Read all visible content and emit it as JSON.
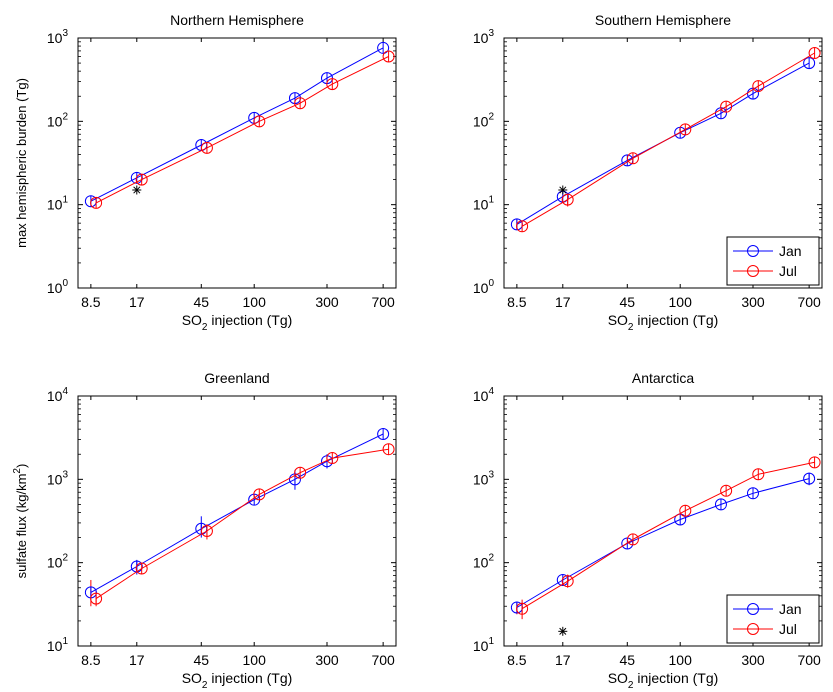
{
  "chart_data": [
    {
      "type": "line",
      "title": "Northern Hemisphere",
      "xlabel_main": "SO",
      "xlabel_sub": "2",
      "xlabel_rest": " injection (Tg)",
      "ylabel": "max hemispheric burden (Tg)",
      "ylabel_sup": "",
      "ylabel_end": "",
      "xscale": "log",
      "yscale": "log",
      "xlim": [
        7,
        850
      ],
      "ylim": [
        1,
        1000
      ],
      "xticks": [
        8.5,
        17,
        45,
        100,
        300,
        700
      ],
      "xtick_labels": [
        "8.5",
        "17",
        "45",
        "100",
        "300",
        "700"
      ],
      "yticks": [
        1,
        10,
        100,
        1000
      ],
      "ytick_labels": [
        [
          "10",
          "0"
        ],
        [
          "10",
          "1"
        ],
        [
          "10",
          "2"
        ],
        [
          "10",
          "3"
        ]
      ],
      "grid": false,
      "legend": null,
      "series": [
        {
          "color": "#0000ff",
          "x": [
            8.5,
            17,
            45,
            100,
            185,
            300,
            700
          ],
          "y": [
            11,
            21,
            52,
            110,
            190,
            330,
            760
          ]
        },
        {
          "color": "#ff0000",
          "x": [
            9.2,
            18.3,
            49,
            108,
            200,
            325,
            760
          ],
          "y": [
            10.5,
            20,
            48,
            100,
            165,
            280,
            600
          ]
        }
      ],
      "errorbars": [],
      "annotations": [
        {
          "marker": "asterisk",
          "x": 17,
          "y": 15
        }
      ]
    },
    {
      "type": "line",
      "title": "Southern Hemisphere",
      "xlabel_main": "SO",
      "xlabel_sub": "2",
      "xlabel_rest": " injection (Tg)",
      "ylabel": "",
      "ylabel_sup": "",
      "ylabel_end": "",
      "xscale": "log",
      "yscale": "log",
      "xlim": [
        7,
        850
      ],
      "ylim": [
        1,
        1000
      ],
      "xticks": [
        8.5,
        17,
        45,
        100,
        300,
        700
      ],
      "xtick_labels": [
        "8.5",
        "17",
        "45",
        "100",
        "300",
        "700"
      ],
      "yticks": [
        1,
        10,
        100,
        1000
      ],
      "ytick_labels": [
        [
          "10",
          "0"
        ],
        [
          "10",
          "1"
        ],
        [
          "10",
          "2"
        ],
        [
          "10",
          "3"
        ]
      ],
      "grid": false,
      "legend": {
        "placement": "bottom-right",
        "entries": [
          {
            "label": "Jan",
            "color": "#0000ff"
          },
          {
            "label": "Jul",
            "color": "#ff0000"
          }
        ]
      },
      "series": [
        {
          "color": "#0000ff",
          "x": [
            8.5,
            17,
            45,
            100,
            185,
            300,
            700
          ],
          "y": [
            5.8,
            12.5,
            34,
            73,
            125,
            215,
            500
          ]
        },
        {
          "color": "#ff0000",
          "x": [
            9.2,
            18.3,
            49,
            108,
            200,
            325,
            760
          ],
          "y": [
            5.5,
            11.5,
            36,
            80,
            150,
            265,
            660
          ]
        }
      ],
      "errorbars": [
        {
          "x": 8.5,
          "y_low": 5.0,
          "y_high": 6.6
        },
        {
          "x": 18.3,
          "y_low": 9.5,
          "y_high": 13.5
        }
      ],
      "annotations": [
        {
          "marker": "asterisk",
          "x": 17,
          "y": 15
        }
      ]
    },
    {
      "type": "line",
      "title": "Greenland",
      "xlabel_main": "SO",
      "xlabel_sub": "2",
      "xlabel_rest": " injection (Tg)",
      "ylabel": "sulfate flux (kg/km",
      "ylabel_sup": "2",
      "ylabel_end": ")",
      "xscale": "log",
      "yscale": "log",
      "xlim": [
        7,
        850
      ],
      "ylim": [
        10,
        10000
      ],
      "xticks": [
        8.5,
        17,
        45,
        100,
        300,
        700
      ],
      "xtick_labels": [
        "8.5",
        "17",
        "45",
        "100",
        "300",
        "700"
      ],
      "yticks": [
        10,
        100,
        1000,
        10000
      ],
      "ytick_labels": [
        [
          "10",
          "1"
        ],
        [
          "10",
          "2"
        ],
        [
          "10",
          "3"
        ],
        [
          "10",
          "4"
        ]
      ],
      "grid": false,
      "legend": null,
      "series": [
        {
          "color": "#0000ff",
          "x": [
            8.5,
            17,
            45,
            100,
            185,
            300,
            700
          ],
          "y": [
            44,
            90,
            255,
            570,
            1000,
            1650,
            3500
          ]
        },
        {
          "color": "#ff0000",
          "x": [
            9.2,
            18.3,
            49,
            108,
            200,
            325,
            760
          ],
          "y": [
            37,
            85,
            240,
            660,
            1200,
            1800,
            2300
          ]
        }
      ],
      "errorbars": [
        {
          "x": 8.5,
          "y_low": 30,
          "y_high": 62
        },
        {
          "x": 9.2,
          "y_low": 30,
          "y_high": 46
        },
        {
          "x": 17,
          "y_low": 72,
          "y_high": 108
        },
        {
          "x": 45,
          "y_low": 200,
          "y_high": 360
        },
        {
          "x": 49,
          "y_low": 190,
          "y_high": 290
        },
        {
          "x": 185,
          "y_low": 750,
          "y_high": 1300
        },
        {
          "x": 300,
          "y_low": 1350,
          "y_high": 2000
        }
      ],
      "annotations": []
    },
    {
      "type": "line",
      "title": "Antarctica",
      "xlabel_main": "SO",
      "xlabel_sub": "2",
      "xlabel_rest": " injection (Tg)",
      "ylabel": "",
      "ylabel_sup": "",
      "ylabel_end": "",
      "xscale": "log",
      "yscale": "log",
      "xlim": [
        7,
        850
      ],
      "ylim": [
        10,
        10000
      ],
      "xticks": [
        8.5,
        17,
        45,
        100,
        300,
        700
      ],
      "xtick_labels": [
        "8.5",
        "17",
        "45",
        "100",
        "300",
        "700"
      ],
      "yticks": [
        10,
        100,
        1000,
        10000
      ],
      "ytick_labels": [
        [
          "10",
          "1"
        ],
        [
          "10",
          "2"
        ],
        [
          "10",
          "3"
        ],
        [
          "10",
          "4"
        ]
      ],
      "grid": false,
      "legend": {
        "placement": "bottom-right",
        "entries": [
          {
            "label": "Jan",
            "color": "#0000ff"
          },
          {
            "label": "Jul",
            "color": "#ff0000"
          }
        ]
      },
      "series": [
        {
          "color": "#0000ff",
          "x": [
            8.5,
            17,
            45,
            100,
            185,
            300,
            700
          ],
          "y": [
            29,
            62,
            170,
            330,
            500,
            680,
            1020
          ]
        },
        {
          "color": "#ff0000",
          "x": [
            9.2,
            18.3,
            49,
            108,
            200,
            325,
            760
          ],
          "y": [
            28,
            60,
            190,
            420,
            730,
            1150,
            1600
          ]
        }
      ],
      "errorbars": [
        {
          "x": 8.5,
          "y_low": 24,
          "y_high": 33
        },
        {
          "x": 9.2,
          "y_low": 21,
          "y_high": 36
        },
        {
          "x": 18.3,
          "y_low": 50,
          "y_high": 72
        },
        {
          "x": 700,
          "y_low": 850,
          "y_high": 1200
        }
      ],
      "annotations": [
        {
          "marker": "asterisk",
          "x": 17,
          "y": 15
        }
      ]
    }
  ]
}
